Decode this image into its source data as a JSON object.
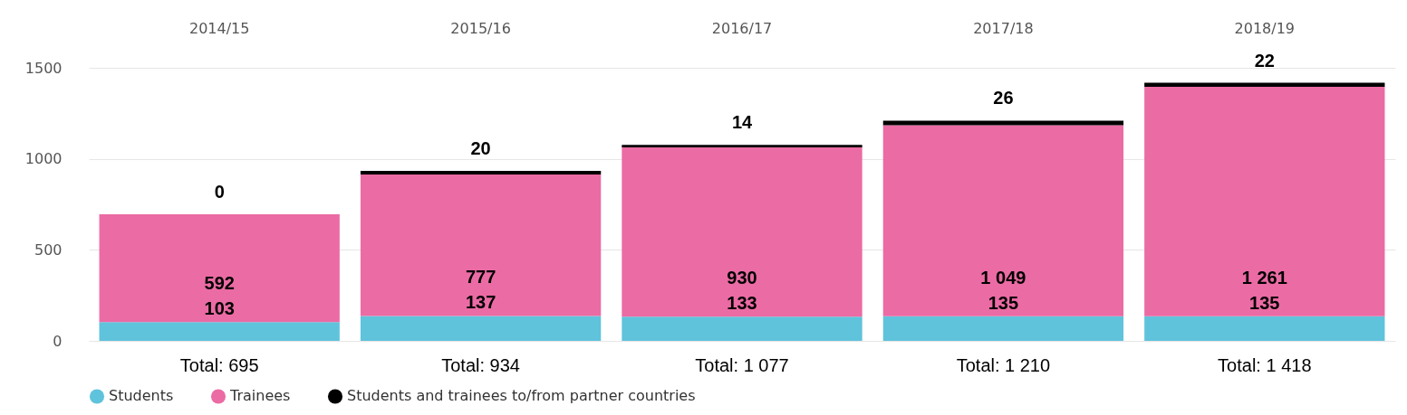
{
  "chart_data": {
    "type": "bar",
    "stacked": true,
    "categories": [
      "2014/15",
      "2015/16",
      "2016/17",
      "2017/18",
      "2018/19"
    ],
    "series": [
      {
        "name": "Students",
        "color": "#5fc3dc",
        "values": [
          103,
          137,
          133,
          135,
          135
        ],
        "value_labels": [
          "103",
          "137",
          "133",
          "135",
          "135"
        ]
      },
      {
        "name": "Trainees",
        "color": "#eb6ba4",
        "values": [
          592,
          777,
          930,
          1049,
          1261
        ],
        "value_labels": [
          "592",
          "777",
          "930",
          "1 049",
          "1 261"
        ]
      },
      {
        "name": "Students and trainees to/from partner countries",
        "color": "#000000",
        "values": [
          0,
          20,
          14,
          26,
          22
        ],
        "value_labels": [
          "0",
          "20",
          "14",
          "26",
          "22"
        ]
      }
    ],
    "totals": [
      "Total: 695",
      "Total: 934",
      "Total: 1 077",
      "Total: 1 210",
      "Total: 1 418"
    ],
    "ylim": [
      0,
      1500
    ],
    "yticks": [
      0,
      500,
      1000,
      1500
    ],
    "grid": "y",
    "legend": "bottom"
  }
}
